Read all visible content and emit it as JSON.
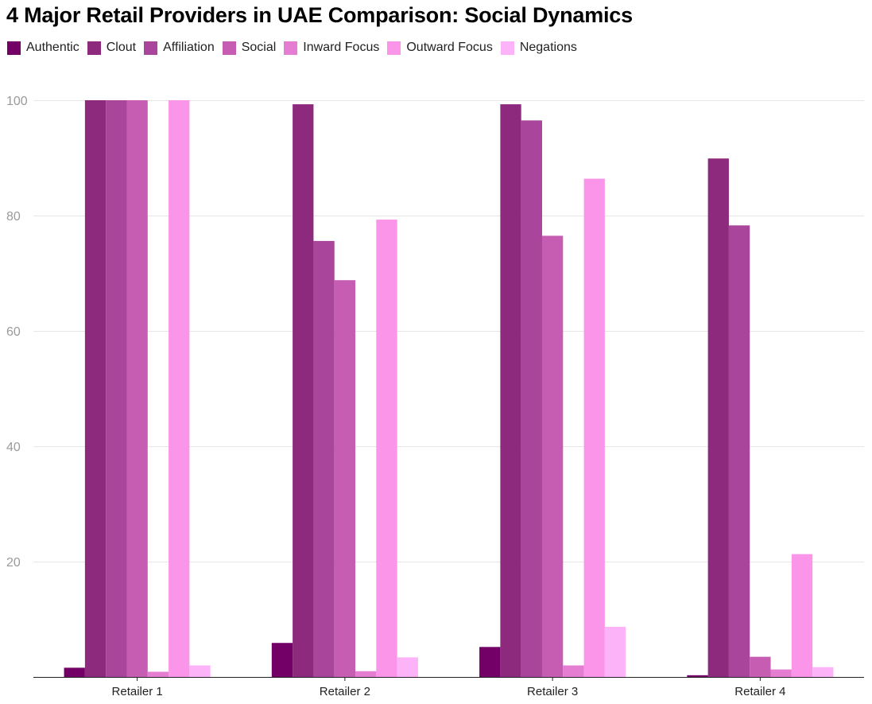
{
  "chart_data": {
    "type": "bar",
    "title": "4 Major Retail Providers in UAE Comparison: Social Dynamics",
    "xlabel": "",
    "ylabel": "",
    "ylim": [
      0,
      100
    ],
    "yticks": [
      20,
      40,
      60,
      80,
      100
    ],
    "grid": true,
    "legend_position": "top-left",
    "categories": [
      "Retailer 1",
      "Retailer 2",
      "Retailer 3",
      "Retailer 4"
    ],
    "series": [
      {
        "name": "Authentic",
        "color": "#730067",
        "values": [
          1.6,
          5.9,
          5.2,
          0.3
        ]
      },
      {
        "name": "Clout",
        "color": "#8e2a7d",
        "values": [
          100,
          99.3,
          99.3,
          89.9
        ]
      },
      {
        "name": "Affiliation",
        "color": "#a9459b",
        "values": [
          100,
          75.6,
          96.5,
          78.3
        ]
      },
      {
        "name": "Social",
        "color": "#c65db3",
        "values": [
          100,
          68.8,
          76.5,
          3.5
        ]
      },
      {
        "name": "Inward Focus",
        "color": "#e57dd2",
        "values": [
          0.9,
          1.0,
          2.0,
          1.3
        ]
      },
      {
        "name": "Outward Focus",
        "color": "#fb95ea",
        "values": [
          100,
          79.3,
          86.4,
          21.3
        ]
      },
      {
        "name": "Negations",
        "color": "#fdb3f8",
        "values": [
          2.0,
          3.4,
          8.7,
          1.7
        ]
      }
    ]
  }
}
